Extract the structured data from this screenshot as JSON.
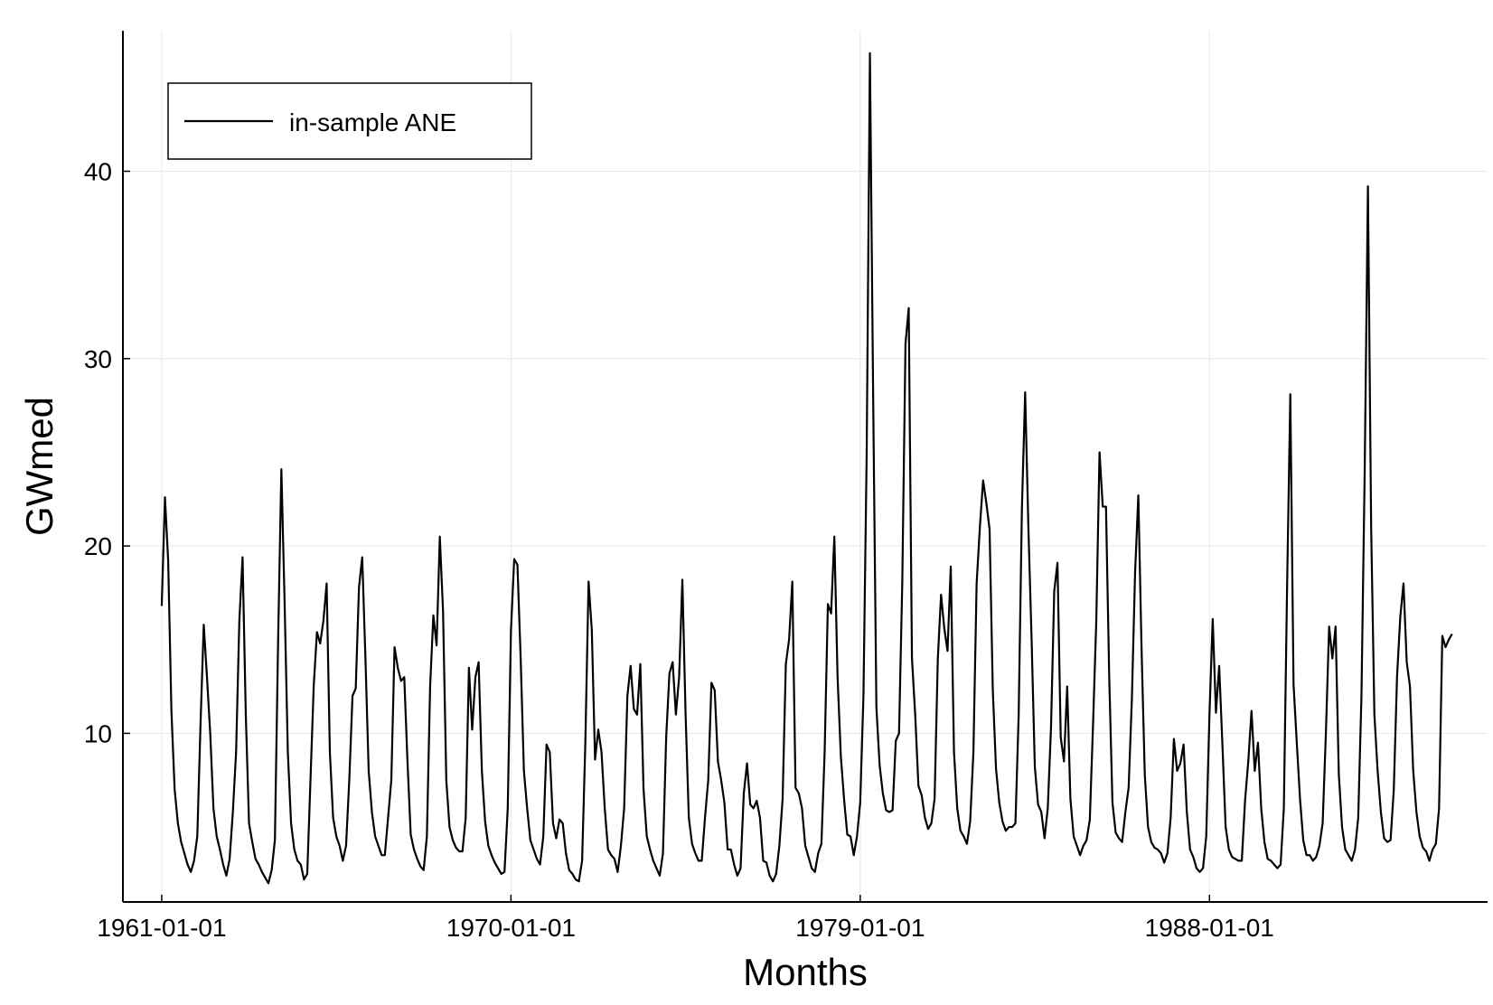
{
  "chart_data": {
    "type": "line",
    "title": "",
    "xlabel": "Months",
    "ylabel": "GWmed",
    "x_ticks": [
      "1961-01-01",
      "1970-01-01",
      "1979-01-01",
      "1988-01-01"
    ],
    "y_ticks": [
      "10",
      "20",
      "30",
      "40"
    ],
    "xlim": [
      "1960-01-01",
      "1995-03-01"
    ],
    "ylim": [
      1,
      47.5
    ],
    "grid": true,
    "legend_position": "top-left",
    "x_start": "1961-01-01",
    "x_step": "1 month",
    "series": [
      {
        "name": "in-sample ANE",
        "color": "#000000",
        "values": [
          16.8,
          22.6,
          19.2,
          11.2,
          7.0,
          5.2,
          4.2,
          3.6,
          3.0,
          2.6,
          3.2,
          4.5,
          10.5,
          15.8,
          13.0,
          10.0,
          6.0,
          4.5,
          3.8,
          3.0,
          2.4,
          3.3,
          5.8,
          9.0,
          16.0,
          19.4,
          11.0,
          5.2,
          4.2,
          3.3,
          3.0,
          2.6,
          2.3,
          2.0,
          2.7,
          4.3,
          15.0,
          24.1,
          17.0,
          9.0,
          5.2,
          3.8,
          3.2,
          3.0,
          2.2,
          2.5,
          7.5,
          12.5,
          15.4,
          14.8,
          16.0,
          18.0,
          9.0,
          5.5,
          4.5,
          4.0,
          3.2,
          4.0,
          7.5,
          12.0,
          12.4,
          17.8,
          19.4,
          14.0,
          8.0,
          5.8,
          4.5,
          4.0,
          3.5,
          3.5,
          5.5,
          7.5,
          14.6,
          13.5,
          12.8,
          13.0,
          8.5,
          4.6,
          3.8,
          3.3,
          2.9,
          2.7,
          4.5,
          12.5,
          16.3,
          14.7,
          20.5,
          16.5,
          7.5,
          5.0,
          4.3,
          3.9,
          3.7,
          3.7,
          5.5,
          13.5,
          10.2,
          13.0,
          13.8,
          8.0,
          5.3,
          4.0,
          3.5,
          3.1,
          2.8,
          2.5,
          2.6,
          6.0,
          15.5,
          19.3,
          19.0,
          14.0,
          8.0,
          6.0,
          4.3,
          3.8,
          3.3,
          3.0,
          4.5,
          9.4,
          9.0,
          5.2,
          4.4,
          5.4,
          5.2,
          3.6,
          2.7,
          2.5,
          2.2,
          2.1,
          3.2,
          9.5,
          18.1,
          15.5,
          8.6,
          10.2,
          9.0,
          6.0,
          3.8,
          3.5,
          3.3,
          2.6,
          4.0,
          6.0,
          12.0,
          13.6,
          11.3,
          11.0,
          13.7,
          7.0,
          4.5,
          3.8,
          3.2,
          2.8,
          2.4,
          3.6,
          9.8,
          13.2,
          13.8,
          11.0,
          13.0,
          18.2,
          11.0,
          5.5,
          4.1,
          3.6,
          3.2,
          3.2,
          5.5,
          7.5,
          12.7,
          12.3,
          8.5,
          7.5,
          6.3,
          3.8,
          3.8,
          3.0,
          2.4,
          2.8,
          6.8,
          8.4,
          6.2,
          6.0,
          6.4,
          5.5,
          3.2,
          3.1,
          2.4,
          2.1,
          2.5,
          4.0,
          6.5,
          13.7,
          15.0,
          18.1,
          7.1,
          6.8,
          6.0,
          4.0,
          3.4,
          2.8,
          2.6,
          3.6,
          4.1,
          9.0,
          16.9,
          16.4,
          20.5,
          13.0,
          8.8,
          6.5,
          4.6,
          4.5,
          3.5,
          4.5,
          6.3,
          12.0,
          25.0,
          46.3,
          28.0,
          11.4,
          8.3,
          6.8,
          5.9,
          5.8,
          5.9,
          9.6,
          10.0,
          18.0,
          30.8,
          32.7,
          14.0,
          11.0,
          7.2,
          6.7,
          5.5,
          4.9,
          5.2,
          6.5,
          14.0,
          17.4,
          15.6,
          14.4,
          18.9,
          9.0,
          6.0,
          4.8,
          4.5,
          4.1,
          5.3,
          9.0,
          18.0,
          21.0,
          23.5,
          22.3,
          20.9,
          12.3,
          8.1,
          6.3,
          5.3,
          4.8,
          5.0,
          5.0,
          5.2,
          11.0,
          22.0,
          28.2,
          21.0,
          15.0,
          8.2,
          6.2,
          5.8,
          4.4,
          6.0,
          10.3,
          17.6,
          19.1,
          9.8,
          8.5,
          12.5,
          6.5,
          4.5,
          4.0,
          3.5,
          4.0,
          4.3,
          5.4,
          10.5,
          16.0,
          25.0,
          22.1,
          22.1,
          13.0,
          6.3,
          4.7,
          4.4,
          4.2,
          5.8,
          7.1,
          11.8,
          18.6,
          22.7,
          14.5,
          7.8,
          5.0,
          4.2,
          3.9,
          3.8,
          3.6,
          3.1,
          3.6,
          5.5,
          9.7,
          8.0,
          8.4,
          9.4,
          5.8,
          3.8,
          3.4,
          2.8,
          2.6,
          2.8,
          4.5,
          11.0,
          16.1,
          11.1,
          13.6,
          9.4,
          5.0,
          3.8,
          3.4,
          3.3,
          3.2,
          3.2,
          6.4,
          8.5,
          11.2,
          8.0,
          9.5,
          6.0,
          4.2,
          3.3,
          3.2,
          3.0,
          2.8,
          3.0,
          6.0,
          17.8,
          28.1,
          12.6,
          9.5,
          6.5,
          4.3,
          3.5,
          3.5,
          3.2,
          3.4,
          4.0,
          5.2,
          10.0,
          15.7,
          14.0,
          15.7,
          7.8,
          5.0,
          3.8,
          3.5,
          3.2,
          3.8,
          5.5,
          12.0,
          24.0,
          39.2,
          21.0,
          11.0,
          8.0,
          5.8,
          4.4,
          4.2,
          4.3,
          7.0,
          13.0,
          16.2,
          18.0,
          13.8,
          12.5,
          8.0,
          5.8,
          4.5,
          3.9,
          3.7,
          3.2,
          3.8,
          4.1,
          6.0,
          15.2,
          14.6,
          15.0,
          15.3
        ]
      }
    ]
  }
}
